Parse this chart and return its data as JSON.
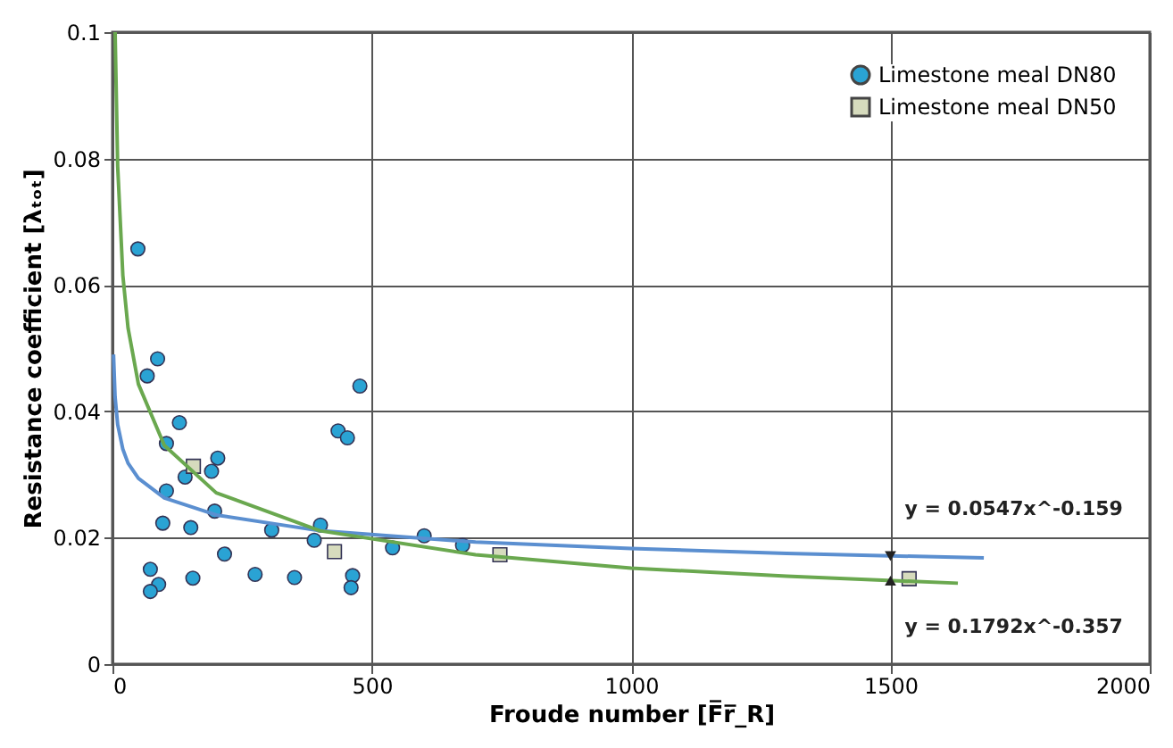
{
  "chart_data": {
    "type": "scatter",
    "xlabel": "Froude number [F̅r̅_R]",
    "ylabel": "Resistance coefficient [λₜₒₜ]",
    "xlim": [
      0,
      2000
    ],
    "xticks": [
      0,
      500,
      1000,
      1500,
      2000
    ],
    "ylim": [
      0,
      0.1
    ],
    "yticks": [
      0,
      0.02,
      0.04,
      0.06,
      0.08,
      0.1
    ],
    "grid": true,
    "legend": "top right",
    "series": [
      {
        "name": "Limestone meal DN80",
        "marker": "circle",
        "color": "#2aa3d4",
        "x": [
          49,
          67,
          87,
          129,
          104,
          104,
          97,
          151,
          197,
          203,
          191,
          140,
          216,
          73,
          89,
          73,
          155,
          275,
          307,
          351,
          401,
          389,
          435,
          453,
          477,
          463,
          460,
          540,
          601,
          675
        ],
        "values": [
          0.0657,
          0.0456,
          0.0483,
          0.0382,
          0.0349,
          0.0274,
          0.0223,
          0.0216,
          0.0242,
          0.0326,
          0.0305,
          0.0296,
          0.0174,
          0.015,
          0.0126,
          0.0115,
          0.0136,
          0.0142,
          0.0212,
          0.0137,
          0.022,
          0.0196,
          0.0369,
          0.0358,
          0.044,
          0.014,
          0.0121,
          0.0184,
          0.0203,
          0.0188
        ]
      },
      {
        "name": "Limestone meal DN50",
        "marker": "square",
        "color": "#d6dbbd",
        "x": [
          156,
          428,
          747,
          1536
        ],
        "values": [
          0.0313,
          0.0178,
          0.0173,
          0.0135
        ]
      },
      {
        "type": "line",
        "color": "#5b8fd0",
        "x": [
          2,
          5,
          10,
          20,
          30,
          50,
          100,
          200,
          400,
          700,
          1000,
          1300,
          1680
        ],
        "values": [
          0.049,
          0.0423,
          0.0379,
          0.034,
          0.0318,
          0.0294,
          0.0263,
          0.0236,
          0.0211,
          0.0193,
          0.0183,
          0.0175,
          0.0168
        ]
      },
      {
        "type": "line",
        "color": "#6aa84f",
        "x": [
          5.1,
          10,
          20,
          30,
          50,
          100,
          200,
          400,
          700,
          1000,
          1300,
          1630
        ],
        "values": [
          0.1,
          0.0788,
          0.0615,
          0.0532,
          0.0443,
          0.0346,
          0.0271,
          0.0211,
          0.0173,
          0.0152,
          0.0139,
          0.0128
        ]
      }
    ],
    "annotations": [
      {
        "text": "y = 0.0547x^-0.159",
        "x": 1500,
        "y": 0.0171
      },
      {
        "text": "y = 0.1792x^-0.357",
        "x": 1500,
        "y": 0.0132
      }
    ]
  }
}
